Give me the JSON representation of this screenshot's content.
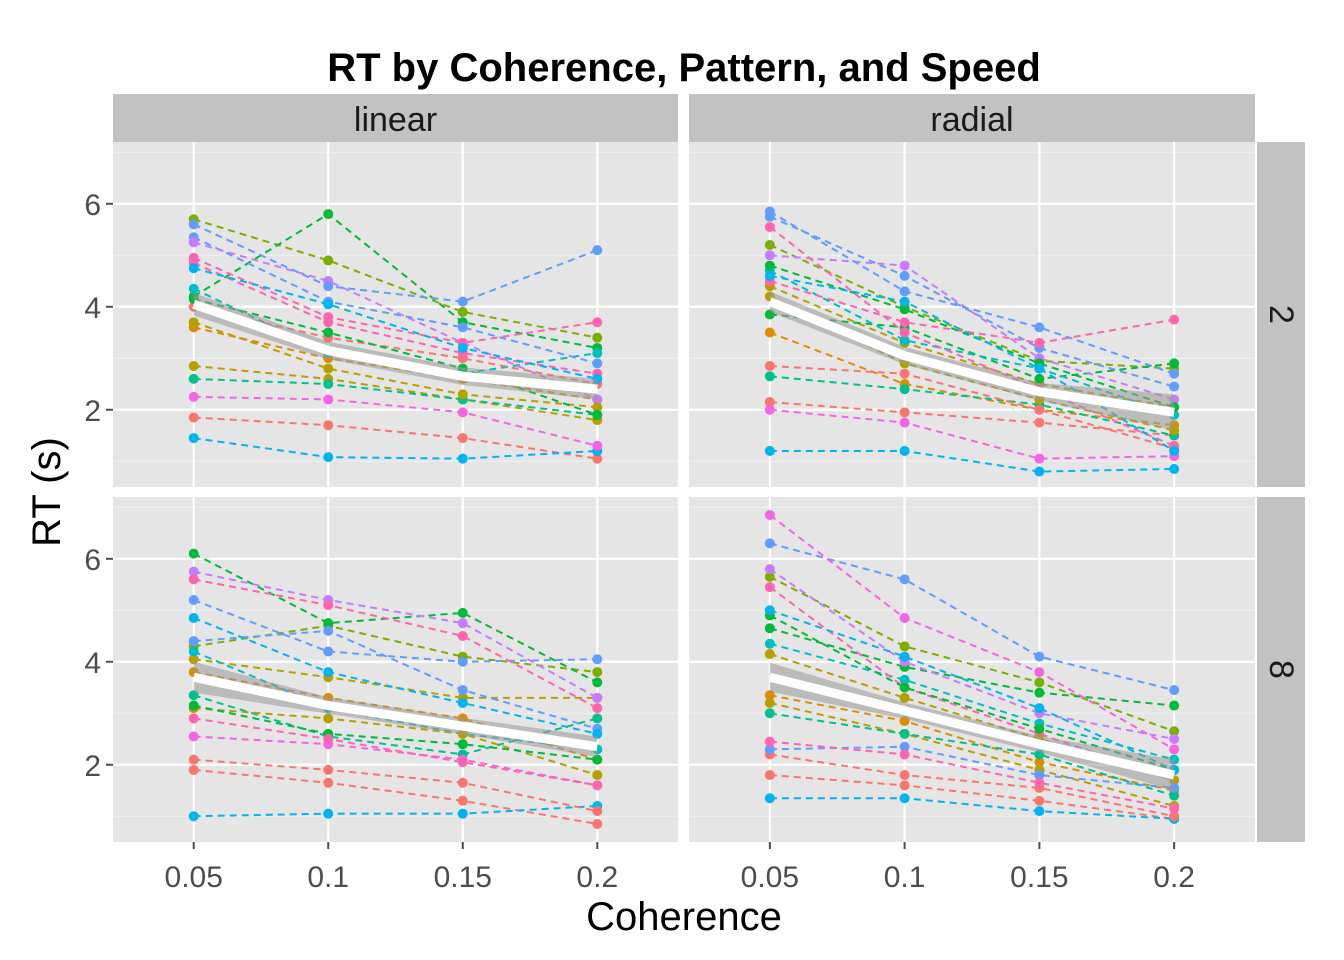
{
  "chart_data": {
    "type": "line",
    "title": "RT by Coherence, Pattern, and Speed",
    "xlabel": "Coherence",
    "ylabel": "RT (s)",
    "x": [
      0.05,
      0.1,
      0.15,
      0.2
    ],
    "x_tick_labels": [
      "0.05",
      "0.1",
      "0.15",
      "0.2"
    ],
    "y_ticks": [
      2,
      4,
      6
    ],
    "ylim": [
      0.5,
      7.2
    ],
    "grid": true,
    "facet_columns": [
      "linear",
      "radial"
    ],
    "facet_rows": [
      "2",
      "8"
    ],
    "panels": [
      {
        "pattern": "linear",
        "speed": "2",
        "mean": [
          4.05,
          3.15,
          2.65,
          2.4
        ],
        "band": [
          0.22,
          0.17,
          0.17,
          0.2
        ],
        "series": [
          {
            "color": "#F8766D",
            "values": [
              1.85,
              1.7,
              1.45,
              1.05
            ]
          },
          {
            "color": "#DE8C00",
            "values": [
              3.6,
              3.0,
              2.6,
              2.2
            ]
          },
          {
            "color": "#B79F00",
            "values": [
              2.85,
              2.6,
              2.2,
              1.8
            ]
          },
          {
            "color": "#7CAE00",
            "values": [
              5.7,
              4.9,
              3.9,
              3.4
            ]
          },
          {
            "color": "#00BA38",
            "values": [
              4.2,
              5.8,
              3.7,
              3.2
            ]
          },
          {
            "color": "#00C08B",
            "values": [
              2.6,
              2.5,
              2.2,
              1.9
            ]
          },
          {
            "color": "#00BFC4",
            "values": [
              4.35,
              3.1,
              2.7,
              3.1
            ]
          },
          {
            "color": "#00B4F0",
            "values": [
              1.45,
              1.08,
              1.05,
              1.2
            ]
          },
          {
            "color": "#619CFF",
            "values": [
              5.35,
              4.1,
              3.6,
              2.9
            ]
          },
          {
            "color": "#C77CFF",
            "values": [
              5.25,
              4.5,
              3.3,
              2.2
            ]
          },
          {
            "color": "#F564E3",
            "values": [
              2.25,
              2.2,
              1.95,
              1.3
            ]
          },
          {
            "color": "#FF64B0",
            "values": [
              4.95,
              3.8,
              3.3,
              3.7
            ]
          },
          {
            "color": "#F8766D",
            "values": [
              4.0,
              3.4,
              3.0,
              2.5
            ]
          },
          {
            "color": "#B79F00",
            "values": [
              3.7,
              2.8,
              2.3,
              2.05
            ]
          },
          {
            "color": "#00BA38",
            "values": [
              4.15,
              3.5,
              2.8,
              1.9
            ]
          },
          {
            "color": "#619CFF",
            "values": [
              5.6,
              4.4,
              4.1,
              5.1
            ]
          },
          {
            "color": "#FF64B0",
            "values": [
              4.85,
              3.7,
              3.1,
              2.7
            ]
          },
          {
            "color": "#00B4F0",
            "values": [
              4.75,
              4.05,
              3.2,
              2.6
            ]
          }
        ]
      },
      {
        "pattern": "radial",
        "speed": "2",
        "mean": [
          4.1,
          3.05,
          2.35,
          1.95
        ],
        "band": [
          0.2,
          0.17,
          0.17,
          0.35
        ],
        "series": [
          {
            "color": "#F8766D",
            "values": [
              2.15,
              1.95,
              1.75,
              1.5
            ]
          },
          {
            "color": "#DE8C00",
            "values": [
              3.5,
              2.5,
              2.0,
              1.7
            ]
          },
          {
            "color": "#B79F00",
            "values": [
              4.4,
              3.3,
              2.5,
              2.05
            ]
          },
          {
            "color": "#7CAE00",
            "values": [
              5.2,
              4.0,
              2.95,
              2.8
            ]
          },
          {
            "color": "#00BA38",
            "values": [
              3.85,
              3.6,
              2.6,
              2.9
            ]
          },
          {
            "color": "#00C08B",
            "values": [
              2.65,
              2.4,
              2.1,
              1.5
            ]
          },
          {
            "color": "#00BFC4",
            "values": [
              4.7,
              3.35,
              2.8,
              1.9
            ]
          },
          {
            "color": "#00B4F0",
            "values": [
              1.2,
              1.2,
              0.8,
              0.85
            ]
          },
          {
            "color": "#619CFF",
            "values": [
              5.75,
              4.6,
              3.2,
              2.45
            ]
          },
          {
            "color": "#C77CFF",
            "values": [
              5.0,
              4.8,
              3.0,
              2.2
            ]
          },
          {
            "color": "#F564E3",
            "values": [
              2.0,
              1.75,
              1.05,
              1.1
            ]
          },
          {
            "color": "#FF64B0",
            "values": [
              4.5,
              3.7,
              3.3,
              3.75
            ]
          },
          {
            "color": "#F8766D",
            "values": [
              2.85,
              2.7,
              2.0,
              1.25
            ]
          },
          {
            "color": "#B79F00",
            "values": [
              4.2,
              2.9,
              2.2,
              1.6
            ]
          },
          {
            "color": "#00BA38",
            "values": [
              4.8,
              3.95,
              2.9,
              2.05
            ]
          },
          {
            "color": "#619CFF",
            "values": [
              5.85,
              4.3,
              3.6,
              2.7
            ]
          },
          {
            "color": "#FF64B0",
            "values": [
              5.55,
              3.5,
              2.4,
              1.3
            ]
          },
          {
            "color": "#00B4F0",
            "values": [
              4.6,
              4.1,
              2.8,
              1.2
            ]
          }
        ]
      },
      {
        "pattern": "linear",
        "speed": "8",
        "mean": [
          3.7,
          3.15,
          2.75,
          2.35
        ],
        "band": [
          0.3,
          0.16,
          0.16,
          0.2
        ],
        "series": [
          {
            "color": "#F8766D",
            "values": [
              1.9,
              1.65,
              1.3,
              0.85
            ]
          },
          {
            "color": "#DE8C00",
            "values": [
              3.8,
              3.3,
              2.9,
              2.1
            ]
          },
          {
            "color": "#B79F00",
            "values": [
              4.05,
              3.7,
              3.3,
              3.3
            ]
          },
          {
            "color": "#7CAE00",
            "values": [
              4.3,
              4.7,
              4.1,
              3.8
            ]
          },
          {
            "color": "#00BA38",
            "values": [
              6.1,
              4.75,
              4.95,
              3.6
            ]
          },
          {
            "color": "#00C08B",
            "values": [
              3.35,
              2.55,
              2.2,
              2.9
            ]
          },
          {
            "color": "#00BFC4",
            "values": [
              4.2,
              3.1,
              2.6,
              2.3
            ]
          },
          {
            "color": "#00B4F0",
            "values": [
              1.0,
              1.05,
              1.05,
              1.2
            ]
          },
          {
            "color": "#619CFF",
            "values": [
              5.2,
              4.2,
              4.0,
              4.05
            ]
          },
          {
            "color": "#C77CFF",
            "values": [
              5.75,
              5.2,
              4.75,
              3.3
            ]
          },
          {
            "color": "#F564E3",
            "values": [
              2.55,
              2.4,
              2.1,
              1.6
            ]
          },
          {
            "color": "#FF64B0",
            "values": [
              5.6,
              5.1,
              4.5,
              3.1
            ]
          },
          {
            "color": "#F8766D",
            "values": [
              2.1,
              1.9,
              1.65,
              1.1
            ]
          },
          {
            "color": "#B79F00",
            "values": [
              3.1,
              2.9,
              2.6,
              1.8
            ]
          },
          {
            "color": "#00BA38",
            "values": [
              3.15,
              2.6,
              2.4,
              2.1
            ]
          },
          {
            "color": "#619CFF",
            "values": [
              4.4,
              4.6,
              3.45,
              2.7
            ]
          },
          {
            "color": "#FF64B0",
            "values": [
              2.9,
              2.5,
              2.05,
              1.6
            ]
          },
          {
            "color": "#00B4F0",
            "values": [
              4.85,
              3.8,
              3.2,
              2.6
            ]
          }
        ]
      },
      {
        "pattern": "radial",
        "speed": "8",
        "mean": [
          3.7,
          3.05,
          2.4,
          1.8
        ],
        "band": [
          0.28,
          0.16,
          0.16,
          0.3
        ],
        "series": [
          {
            "color": "#F8766D",
            "values": [
              1.8,
              1.6,
              1.3,
              0.95
            ]
          },
          {
            "color": "#DE8C00",
            "values": [
              3.35,
              2.85,
              2.05,
              1.5
            ]
          },
          {
            "color": "#B79F00",
            "values": [
              3.2,
              2.6,
              1.9,
              1.2
            ]
          },
          {
            "color": "#7CAE00",
            "values": [
              5.65,
              4.3,
              3.6,
              2.65
            ]
          },
          {
            "color": "#00BA38",
            "values": [
              4.65,
              3.9,
              3.4,
              3.15
            ]
          },
          {
            "color": "#00C08B",
            "values": [
              3.0,
              2.6,
              2.2,
              1.4
            ]
          },
          {
            "color": "#00BFC4",
            "values": [
              4.35,
              3.65,
              2.8,
              2.1
            ]
          },
          {
            "color": "#00B4F0",
            "values": [
              1.35,
              1.35,
              1.1,
              0.95
            ]
          },
          {
            "color": "#619CFF",
            "values": [
              6.3,
              5.6,
              4.1,
              3.45
            ]
          },
          {
            "color": "#C77CFF",
            "values": [
              5.8,
              4.0,
              3.0,
              2.5
            ]
          },
          {
            "color": "#F564E3",
            "values": [
              6.85,
              4.85,
              3.8,
              2.3
            ]
          },
          {
            "color": "#FF64B0",
            "values": [
              5.45,
              3.5,
              2.6,
              1.7
            ]
          },
          {
            "color": "#F8766D",
            "values": [
              2.2,
              1.8,
              1.55,
              1.0
            ]
          },
          {
            "color": "#B79F00",
            "values": [
              4.15,
              3.3,
              2.5,
              1.7
            ]
          },
          {
            "color": "#00BA38",
            "values": [
              4.9,
              3.5,
              2.7,
              1.9
            ]
          },
          {
            "color": "#619CFF",
            "values": [
              2.3,
              2.35,
              1.8,
              1.55
            ]
          },
          {
            "color": "#FF64B0",
            "values": [
              2.45,
              2.2,
              1.65,
              1.15
            ]
          },
          {
            "color": "#00B4F0",
            "values": [
              5.0,
              4.1,
              3.1,
              1.9
            ]
          }
        ]
      }
    ]
  }
}
